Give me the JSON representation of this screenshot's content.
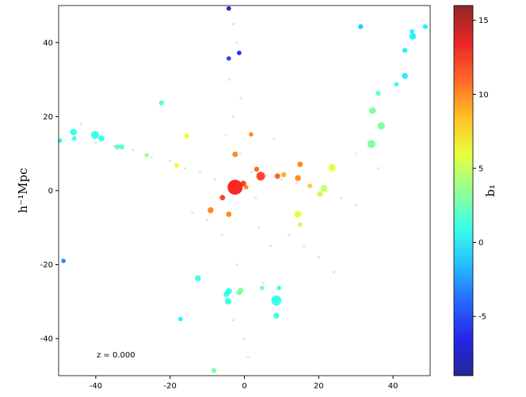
{
  "chart_data": {
    "type": "scatter",
    "ylabel": "h⁻¹Mpc",
    "annotation": "z = 0.000",
    "colorbar_label": "b₁",
    "colormap": "jet",
    "xlim": [
      -50,
      50
    ],
    "ylim": [
      -50,
      50
    ],
    "xticks": [
      -40,
      -20,
      0,
      20,
      40
    ],
    "yticks": [
      -40,
      -20,
      0,
      20,
      40
    ],
    "clim": [
      -9,
      16
    ],
    "cticks": [
      -5,
      0,
      5,
      10,
      15
    ],
    "background": {
      "color": "#dcd8f6",
      "x": [
        -3,
        -2,
        -4,
        -1,
        -3,
        -5,
        2,
        6,
        10,
        14,
        18,
        22,
        26,
        30,
        -8,
        -12,
        -16,
        -20,
        -25,
        -30,
        -35,
        -40,
        4,
        7,
        -2,
        -3,
        0,
        1,
        -6,
        12,
        16,
        20,
        24,
        -10,
        -14,
        30,
        36,
        -44,
        8,
        3,
        -1,
        5
      ],
      "y": [
        45,
        40,
        30,
        25,
        20,
        15,
        5,
        4,
        3,
        2,
        1,
        0,
        -2,
        -4,
        3,
        5,
        6,
        8,
        9,
        11,
        12,
        13,
        -10,
        -15,
        -20,
        -35,
        -40,
        -45,
        -12,
        -12,
        -15,
        -18,
        -22,
        -8,
        -6,
        10,
        6,
        18,
        14,
        -2,
        10,
        -25
      ]
    },
    "series": [
      {
        "x": [
          -4.2,
          -1.4,
          -4.2,
          31.3,
          48.7,
          45.1,
          45.3,
          43.2,
          43.2,
          40.9,
          36.0,
          34.5,
          36.8,
          34.2,
          -22.3,
          -46.0,
          -45.8,
          -49.6,
          -40.2,
          -38.5,
          -34.2,
          -33.0,
          -26.3,
          -15.5,
          -18.2,
          1.8,
          -2.5,
          -2.5,
          -0.3,
          0.5,
          -5.9,
          -9.1,
          -4.2,
          3.3,
          4.4,
          8.9,
          10.6,
          15.0,
          14.4,
          17.6,
          23.6,
          21.4,
          20.4,
          14.4,
          15.0,
          -48.7,
          -12.5,
          -4.2,
          -4.8,
          -1.0,
          -1.4,
          4.8,
          9.3,
          8.6,
          8.6,
          -4.4,
          -17.2,
          -8.2
        ],
        "y": [
          49.2,
          37.2,
          35.7,
          44.3,
          44.3,
          43.0,
          41.7,
          37.9,
          31.0,
          28.7,
          26.3,
          21.6,
          17.5,
          12.6,
          23.7,
          15.8,
          14.1,
          13.5,
          15.0,
          14.1,
          11.8,
          11.8,
          9.6,
          14.8,
          6.8,
          15.2,
          9.8,
          0.9,
          1.9,
          0.9,
          -1.9,
          -5.3,
          -6.4,
          5.8,
          3.9,
          3.9,
          4.3,
          7.1,
          3.4,
          1.3,
          6.2,
          0.6,
          -0.9,
          -6.4,
          -9.2,
          -19.0,
          -23.7,
          -27.2,
          -28.0,
          -27.0,
          -27.6,
          -26.3,
          -26.3,
          -29.7,
          -33.8,
          -29.9,
          -34.7,
          -48.6
        ],
        "c": [
          -8,
          -6,
          -5,
          -1,
          0,
          0,
          0,
          0,
          0,
          1,
          2,
          3,
          3,
          3,
          2,
          1,
          1,
          1,
          1,
          1,
          2,
          2,
          4,
          6,
          7,
          10,
          10,
          13,
          12,
          10,
          12,
          10,
          10,
          11,
          12,
          11,
          9,
          10,
          10,
          8,
          6,
          5,
          5,
          6,
          5,
          -3,
          1,
          1,
          1,
          3,
          3,
          3,
          1,
          1,
          1,
          1,
          0,
          3
        ],
        "sizes": [
          8,
          8,
          8,
          10,
          10,
          8,
          18,
          10,
          14,
          8,
          10,
          18,
          22,
          26,
          10,
          18,
          8,
          8,
          26,
          14,
          10,
          10,
          8,
          10,
          8,
          8,
          12,
          90,
          14,
          8,
          12,
          14,
          12,
          10,
          30,
          12,
          10,
          12,
          14,
          8,
          20,
          18,
          14,
          20,
          8,
          8,
          14,
          16,
          14,
          12,
          10,
          8,
          8,
          40,
          14,
          16,
          8,
          10
        ]
      }
    ]
  }
}
